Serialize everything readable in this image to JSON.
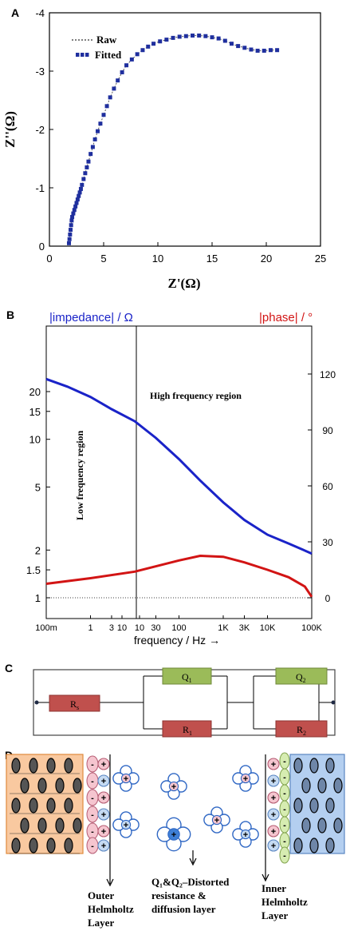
{
  "panels": {
    "a": "A",
    "b": "B",
    "c": "C",
    "d": "D"
  },
  "chart_data": [
    {
      "type": "scatter",
      "xlabel": "Z'(Ω)",
      "ylabel": "Z''(Ω)",
      "xlim": [
        0,
        25
      ],
      "ylim": [
        0,
        -4
      ],
      "x_ticks": [
        "0",
        "5",
        "10",
        "15",
        "20",
        "25"
      ],
      "y_ticks": [
        "0",
        "-1",
        "-2",
        "-3",
        "-4"
      ],
      "legend": [
        "Raw",
        "Fitted"
      ],
      "legend_position": "top-left",
      "series": [
        {
          "name": "Fitted",
          "points": [
            [
              1.8,
              -0.05
            ],
            [
              1.85,
              -0.12
            ],
            [
              1.9,
              -0.2
            ],
            [
              1.95,
              -0.28
            ],
            [
              2.0,
              -0.36
            ],
            [
              2.05,
              -0.44
            ],
            [
              2.1,
              -0.5
            ],
            [
              2.2,
              -0.56
            ],
            [
              2.3,
              -0.62
            ],
            [
              2.4,
              -0.68
            ],
            [
              2.5,
              -0.74
            ],
            [
              2.6,
              -0.8
            ],
            [
              2.7,
              -0.86
            ],
            [
              2.8,
              -0.92
            ],
            [
              2.9,
              -0.98
            ],
            [
              3.0,
              -1.05
            ],
            [
              3.15,
              -1.15
            ],
            [
              3.3,
              -1.25
            ],
            [
              3.45,
              -1.35
            ],
            [
              3.6,
              -1.45
            ],
            [
              3.8,
              -1.58
            ],
            [
              4.0,
              -1.7
            ],
            [
              4.2,
              -1.83
            ],
            [
              4.45,
              -1.97
            ],
            [
              4.7,
              -2.1
            ],
            [
              5.0,
              -2.25
            ],
            [
              5.3,
              -2.4
            ],
            [
              5.6,
              -2.55
            ],
            [
              5.95,
              -2.7
            ],
            [
              6.3,
              -2.84
            ],
            [
              6.7,
              -2.98
            ],
            [
              7.1,
              -3.1
            ],
            [
              7.6,
              -3.2
            ],
            [
              8.1,
              -3.29
            ],
            [
              8.6,
              -3.36
            ],
            [
              9.1,
              -3.42
            ],
            [
              9.6,
              -3.47
            ],
            [
              10.2,
              -3.51
            ],
            [
              10.8,
              -3.54
            ],
            [
              11.4,
              -3.57
            ],
            [
              12.0,
              -3.59
            ],
            [
              12.6,
              -3.6
            ],
            [
              13.2,
              -3.61
            ],
            [
              13.8,
              -3.61
            ],
            [
              14.4,
              -3.6
            ],
            [
              15.0,
              -3.58
            ],
            [
              15.6,
              -3.56
            ],
            [
              16.2,
              -3.52
            ],
            [
              16.8,
              -3.47
            ],
            [
              17.4,
              -3.43
            ],
            [
              18.0,
              -3.4
            ],
            [
              18.6,
              -3.37
            ],
            [
              19.2,
              -3.35
            ],
            [
              19.8,
              -3.35
            ],
            [
              20.4,
              -3.36
            ],
            [
              21.0,
              -3.36
            ]
          ]
        }
      ],
      "colors": {
        "fitted": "#1f2f9e",
        "raw": "#333333"
      }
    },
    {
      "type": "line",
      "title_left": "|impedance| / Ω",
      "title_right": "|phase| /  °",
      "xlabel": "frequency / Hz →",
      "x_scale": "log",
      "xlim": [
        0.1,
        100000
      ],
      "x_ticks": [
        "100m",
        "1",
        "3",
        "10",
        "10",
        "30",
        "100",
        "1K",
        "3K",
        "10K",
        "100K"
      ],
      "y_left_scale": "log",
      "y_left_ticks": [
        "1",
        "1.5",
        "2",
        "5",
        "10",
        "15",
        "20"
      ],
      "y_right_ticks": [
        "0",
        "30",
        "60",
        "90",
        "120"
      ],
      "y_right_lim": [
        0,
        135
      ],
      "annotations": [
        "High frequency region",
        "Low frequency region"
      ],
      "series": [
        {
          "name": "|impedance|",
          "axis": "left",
          "color": "#1a23c8",
          "points": [
            [
              0.1,
              24
            ],
            [
              0.3,
              21.5
            ],
            [
              1,
              18.5
            ],
            [
              3,
              15.5
            ],
            [
              10,
              13
            ],
            [
              30,
              10.2
            ],
            [
              100,
              7.5
            ],
            [
              300,
              5.5
            ],
            [
              1000,
              4.0
            ],
            [
              3000,
              3.1
            ],
            [
              10000,
              2.5
            ],
            [
              30000,
              2.2
            ],
            [
              100000,
              1.9
            ]
          ]
        },
        {
          "name": "|phase|",
          "axis": "right",
          "color": "#d21414",
          "points": [
            [
              0.1,
              7.5
            ],
            [
              1,
              10.5
            ],
            [
              10,
              14
            ],
            [
              100,
              20
            ],
            [
              300,
              22.5
            ],
            [
              1000,
              22
            ],
            [
              3000,
              19
            ],
            [
              10000,
              15
            ],
            [
              30000,
              11
            ],
            [
              70000,
              6
            ],
            [
              100000,
              0.5
            ]
          ]
        }
      ]
    }
  ],
  "circuit": {
    "rs": "R",
    "rs_sub": "s",
    "q1": "Q",
    "q1_sub": "1",
    "r1": "R",
    "r1_sub": "1",
    "q2": "Q",
    "q2_sub": "2",
    "r2": "R",
    "r2_sub": "2",
    "colors": {
      "resistor": "#c0504d",
      "cpe": "#9bbb59"
    }
  },
  "layers": {
    "outer_line1": "Outer",
    "outer_line2": "Helmholtz",
    "outer_line3": "Layer",
    "middle_line1": "Q₁&Q₂–Distorted",
    "middle_line2": "resistance &",
    "middle_line3": "diffusion layer",
    "inner_line1": "Inner",
    "inner_line2": "Helmholtz",
    "inner_line3": "Layer",
    "plus": "+",
    "minus": "-",
    "colors": {
      "left_electrode": "#f9c9a0",
      "right_electrode": "#b4cff0",
      "anion": "#f5c5cf",
      "cation": "#c5daf2"
    }
  }
}
